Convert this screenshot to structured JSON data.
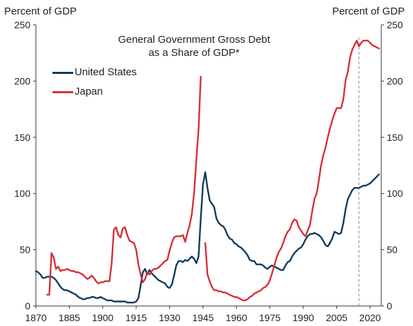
{
  "chart_data": {
    "type": "line",
    "title": "General Government Gross Debt",
    "subtitle": "as a Share of GDP*",
    "ylabel_left": "Percent of GDP",
    "ylabel_right": "Percent of GDP",
    "xlim": [
      1870,
      2025
    ],
    "ylim": [
      0,
      250
    ],
    "x_ticks": [
      1870,
      1885,
      1900,
      1915,
      1930,
      1945,
      1960,
      1975,
      1990,
      2005,
      2020
    ],
    "y_ticks": [
      0,
      50,
      100,
      150,
      200,
      250
    ],
    "grid": false,
    "legend_position": "top-left",
    "reference_line_x": 2015,
    "series": [
      {
        "name": "United States",
        "color": "#0d3b5e",
        "points": [
          [
            1870,
            31
          ],
          [
            1871,
            30
          ],
          [
            1872,
            28
          ],
          [
            1873,
            25
          ],
          [
            1874,
            25
          ],
          [
            1875,
            26
          ],
          [
            1876,
            26
          ],
          [
            1877,
            26
          ],
          [
            1878,
            25
          ],
          [
            1879,
            23
          ],
          [
            1880,
            20
          ],
          [
            1881,
            17
          ],
          [
            1882,
            15
          ],
          [
            1883,
            14
          ],
          [
            1884,
            14
          ],
          [
            1885,
            13
          ],
          [
            1886,
            12
          ],
          [
            1887,
            11
          ],
          [
            1888,
            10
          ],
          [
            1889,
            8
          ],
          [
            1890,
            7
          ],
          [
            1891,
            6
          ],
          [
            1892,
            6
          ],
          [
            1893,
            7
          ],
          [
            1894,
            7
          ],
          [
            1895,
            8
          ],
          [
            1896,
            8
          ],
          [
            1897,
            7
          ],
          [
            1898,
            7
          ],
          [
            1899,
            8
          ],
          [
            1900,
            7
          ],
          [
            1901,
            6
          ],
          [
            1902,
            5
          ],
          [
            1903,
            5
          ],
          [
            1904,
            5
          ],
          [
            1905,
            4
          ],
          [
            1906,
            4
          ],
          [
            1907,
            4
          ],
          [
            1908,
            4
          ],
          [
            1909,
            4
          ],
          [
            1910,
            4
          ],
          [
            1911,
            3
          ],
          [
            1912,
            3
          ],
          [
            1913,
            3
          ],
          [
            1914,
            3
          ],
          [
            1915,
            4
          ],
          [
            1916,
            7
          ],
          [
            1917,
            18
          ],
          [
            1918,
            30
          ],
          [
            1919,
            33
          ],
          [
            1920,
            28
          ],
          [
            1921,
            32
          ],
          [
            1922,
            29
          ],
          [
            1923,
            27
          ],
          [
            1924,
            25
          ],
          [
            1925,
            23
          ],
          [
            1926,
            22
          ],
          [
            1927,
            21
          ],
          [
            1928,
            20
          ],
          [
            1929,
            17
          ],
          [
            1930,
            16
          ],
          [
            1931,
            19
          ],
          [
            1932,
            27
          ],
          [
            1933,
            36
          ],
          [
            1934,
            40
          ],
          [
            1935,
            40
          ],
          [
            1936,
            39
          ],
          [
            1937,
            41
          ],
          [
            1938,
            40
          ],
          [
            1939,
            42
          ],
          [
            1940,
            44
          ],
          [
            1941,
            42
          ],
          [
            1942,
            38
          ],
          [
            1943,
            44
          ],
          [
            1944,
            78
          ],
          [
            1945,
            108
          ],
          [
            1946,
            119
          ],
          [
            1947,
            105
          ],
          [
            1948,
            94
          ],
          [
            1949,
            91
          ],
          [
            1950,
            88
          ],
          [
            1951,
            78
          ],
          [
            1952,
            74
          ],
          [
            1953,
            72
          ],
          [
            1954,
            71
          ],
          [
            1955,
            68
          ],
          [
            1956,
            63
          ],
          [
            1957,
            60
          ],
          [
            1958,
            59
          ],
          [
            1959,
            56
          ],
          [
            1960,
            55
          ],
          [
            1961,
            53
          ],
          [
            1962,
            52
          ],
          [
            1963,
            50
          ],
          [
            1964,
            48
          ],
          [
            1965,
            45
          ],
          [
            1966,
            41
          ],
          [
            1967,
            40
          ],
          [
            1968,
            40
          ],
          [
            1969,
            37
          ],
          [
            1970,
            37
          ],
          [
            1971,
            37
          ],
          [
            1972,
            36
          ],
          [
            1973,
            34
          ],
          [
            1974,
            33
          ],
          [
            1975,
            35
          ],
          [
            1976,
            36
          ],
          [
            1977,
            35
          ],
          [
            1978,
            34
          ],
          [
            1979,
            33
          ],
          [
            1980,
            32
          ],
          [
            1981,
            32
          ],
          [
            1982,
            36
          ],
          [
            1983,
            39
          ],
          [
            1984,
            40
          ],
          [
            1985,
            44
          ],
          [
            1986,
            47
          ],
          [
            1987,
            49
          ],
          [
            1988,
            51
          ],
          [
            1989,
            52
          ],
          [
            1990,
            55
          ],
          [
            1991,
            59
          ],
          [
            1992,
            62
          ],
          [
            1993,
            64
          ],
          [
            1994,
            64
          ],
          [
            1995,
            65
          ],
          [
            1996,
            64
          ],
          [
            1997,
            63
          ],
          [
            1998,
            61
          ],
          [
            1999,
            58
          ],
          [
            2000,
            54
          ],
          [
            2001,
            53
          ],
          [
            2002,
            56
          ],
          [
            2003,
            60
          ],
          [
            2004,
            66
          ],
          [
            2005,
            65
          ],
          [
            2006,
            64
          ],
          [
            2007,
            65
          ],
          [
            2008,
            74
          ],
          [
            2009,
            86
          ],
          [
            2010,
            95
          ],
          [
            2011,
            99
          ],
          [
            2012,
            103
          ],
          [
            2013,
            105
          ],
          [
            2014,
            105
          ],
          [
            2015,
            105
          ],
          [
            2016,
            106
          ],
          [
            2017,
            107
          ],
          [
            2018,
            107
          ],
          [
            2019,
            108
          ],
          [
            2020,
            109
          ],
          [
            2021,
            111
          ],
          [
            2022,
            113
          ],
          [
            2023,
            115
          ],
          [
            2024,
            117
          ]
        ]
      },
      {
        "name": "Japan",
        "color": "#d62f36",
        "segments": [
          [
            [
              1875,
              10
            ],
            [
              1876,
              10
            ],
            [
              1877,
              47
            ],
            [
              1878,
              43
            ],
            [
              1879,
              33
            ],
            [
              1880,
              35
            ],
            [
              1881,
              31
            ],
            [
              1882,
              32
            ],
            [
              1883,
              32
            ],
            [
              1884,
              33
            ],
            [
              1885,
              32
            ],
            [
              1886,
              31
            ],
            [
              1887,
              31
            ],
            [
              1888,
              30
            ],
            [
              1889,
              30
            ],
            [
              1890,
              29
            ],
            [
              1891,
              28
            ],
            [
              1892,
              26
            ],
            [
              1893,
              24
            ],
            [
              1894,
              25
            ],
            [
              1895,
              27
            ],
            [
              1896,
              25
            ],
            [
              1897,
              22
            ],
            [
              1898,
              20
            ],
            [
              1899,
              21
            ],
            [
              1900,
              21
            ],
            [
              1901,
              22
            ],
            [
              1902,
              22
            ],
            [
              1903,
              22
            ],
            [
              1904,
              38
            ],
            [
              1905,
              68
            ],
            [
              1906,
              70
            ],
            [
              1907,
              63
            ],
            [
              1908,
              61
            ],
            [
              1909,
              69
            ],
            [
              1910,
              70
            ],
            [
              1911,
              63
            ],
            [
              1912,
              58
            ],
            [
              1913,
              57
            ],
            [
              1914,
              56
            ],
            [
              1915,
              50
            ],
            [
              1916,
              37
            ],
            [
              1917,
              28
            ],
            [
              1918,
              21
            ],
            [
              1919,
              24
            ],
            [
              1920,
              30
            ],
            [
              1921,
              28
            ],
            [
              1922,
              31
            ],
            [
              1923,
              33
            ],
            [
              1924,
              33
            ],
            [
              1925,
              34
            ],
            [
              1926,
              36
            ],
            [
              1927,
              38
            ],
            [
              1928,
              40
            ],
            [
              1929,
              41
            ],
            [
              1930,
              49
            ],
            [
              1931,
              56
            ],
            [
              1932,
              61
            ],
            [
              1933,
              62
            ],
            [
              1934,
              62
            ],
            [
              1935,
              62
            ],
            [
              1936,
              63
            ],
            [
              1937,
              57
            ],
            [
              1938,
              65
            ],
            [
              1939,
              72
            ],
            [
              1940,
              82
            ],
            [
              1941,
              100
            ],
            [
              1942,
              130
            ],
            [
              1943,
              157
            ],
            [
              1944,
              204
            ]
          ],
          [
            [
              1946,
              56
            ],
            [
              1947,
              28
            ],
            [
              1948,
              22
            ],
            [
              1949,
              17
            ],
            [
              1950,
              14
            ],
            [
              1951,
              14
            ],
            [
              1952,
              13
            ],
            [
              1953,
              13
            ],
            [
              1954,
              12
            ],
            [
              1955,
              12
            ],
            [
              1956,
              11
            ],
            [
              1957,
              10
            ],
            [
              1958,
              9
            ],
            [
              1959,
              8
            ],
            [
              1960,
              8
            ],
            [
              1961,
              7
            ],
            [
              1962,
              6
            ],
            [
              1963,
              5
            ],
            [
              1964,
              5
            ],
            [
              1965,
              6
            ],
            [
              1966,
              8
            ],
            [
              1967,
              9
            ],
            [
              1968,
              11
            ],
            [
              1969,
              12
            ],
            [
              1970,
              13
            ],
            [
              1971,
              14
            ],
            [
              1972,
              16
            ],
            [
              1973,
              17
            ],
            [
              1974,
              19
            ],
            [
              1975,
              23
            ],
            [
              1976,
              29
            ],
            [
              1977,
              36
            ],
            [
              1978,
              43
            ],
            [
              1979,
              48
            ],
            [
              1980,
              51
            ],
            [
              1981,
              56
            ],
            [
              1982,
              62
            ],
            [
              1983,
              66
            ],
            [
              1984,
              68
            ],
            [
              1985,
              74
            ],
            [
              1986,
              77
            ],
            [
              1987,
              76
            ],
            [
              1988,
              70
            ],
            [
              1989,
              67
            ],
            [
              1990,
              64
            ],
            [
              1991,
              62
            ],
            [
              1992,
              67
            ],
            [
              1993,
              72
            ],
            [
              1994,
              84
            ],
            [
              1995,
              95
            ],
            [
              1996,
              100
            ],
            [
              1997,
              112
            ],
            [
              1998,
              125
            ],
            [
              1999,
              134
            ],
            [
              2000,
              141
            ],
            [
              2001,
              150
            ],
            [
              2002,
              158
            ],
            [
              2003,
              165
            ],
            [
              2004,
              171
            ],
            [
              2005,
              176
            ],
            [
              2006,
              176
            ],
            [
              2007,
              176
            ],
            [
              2008,
              184
            ],
            [
              2009,
              201
            ],
            [
              2010,
              208
            ],
            [
              2011,
              221
            ],
            [
              2012,
              228
            ],
            [
              2013,
              232
            ],
            [
              2014,
              236
            ],
            [
              2015,
              231
            ],
            [
              2016,
              234
            ],
            [
              2017,
              236
            ],
            [
              2018,
              236
            ],
            [
              2019,
              236
            ],
            [
              2020,
              234
            ],
            [
              2021,
              232
            ],
            [
              2022,
              231
            ],
            [
              2023,
              230
            ],
            [
              2024,
              229
            ]
          ]
        ]
      }
    ]
  }
}
